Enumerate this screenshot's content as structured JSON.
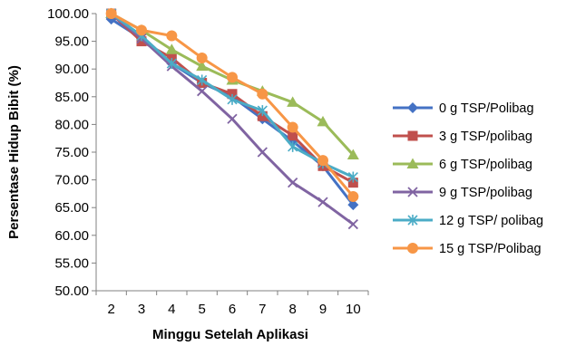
{
  "chart_data": {
    "type": "line",
    "xlabel": "Minggu Setelah Aplikasi",
    "ylabel": "Persentase Hidup Bibit (%)",
    "x": [
      2,
      3,
      4,
      5,
      6,
      7,
      8,
      9,
      10
    ],
    "xlim": [
      1.5,
      10.5
    ],
    "ylim": [
      50,
      100
    ],
    "yticks": [
      "50.00",
      "55.00",
      "60.00",
      "65.00",
      "70.00",
      "75.00",
      "80.00",
      "85.00",
      "90.00",
      "95.00",
      "100.00"
    ],
    "grid": false,
    "legend_position": "right",
    "series": [
      {
        "name": "0 g TSP/Polibag",
        "color": "#4472C4",
        "marker": "diamond",
        "values": [
          99.0,
          95.5,
          91.0,
          87.5,
          85.0,
          81.0,
          77.0,
          72.5,
          65.5
        ]
      },
      {
        "name": "3 g TSP/polibag",
        "color": "#C0504D",
        "marker": "square",
        "values": [
          100.0,
          95.0,
          92.0,
          87.5,
          85.5,
          81.5,
          78.0,
          72.5,
          69.5
        ]
      },
      {
        "name": "6 g TSP/polibag",
        "color": "#9BBB59",
        "marker": "triangle",
        "values": [
          100.0,
          97.0,
          93.5,
          90.5,
          88.0,
          86.0,
          84.0,
          80.5,
          74.5
        ]
      },
      {
        "name": "9 g TSP/polibag",
        "color": "#8064A2",
        "marker": "x",
        "values": [
          100.0,
          95.5,
          90.5,
          86.0,
          81.0,
          75.0,
          69.5,
          66.0,
          62.0
        ]
      },
      {
        "name": "12 g TSP/ polibag",
        "color": "#4BACC6",
        "marker": "star",
        "values": [
          100.0,
          96.0,
          91.0,
          88.0,
          84.5,
          82.5,
          76.0,
          73.0,
          70.5
        ]
      },
      {
        "name": "15 g TSP/Polibag",
        "color": "#F79646",
        "marker": "circle",
        "values": [
          100.0,
          97.0,
          96.0,
          92.0,
          88.5,
          85.5,
          79.5,
          73.5,
          67.0
        ]
      }
    ]
  }
}
